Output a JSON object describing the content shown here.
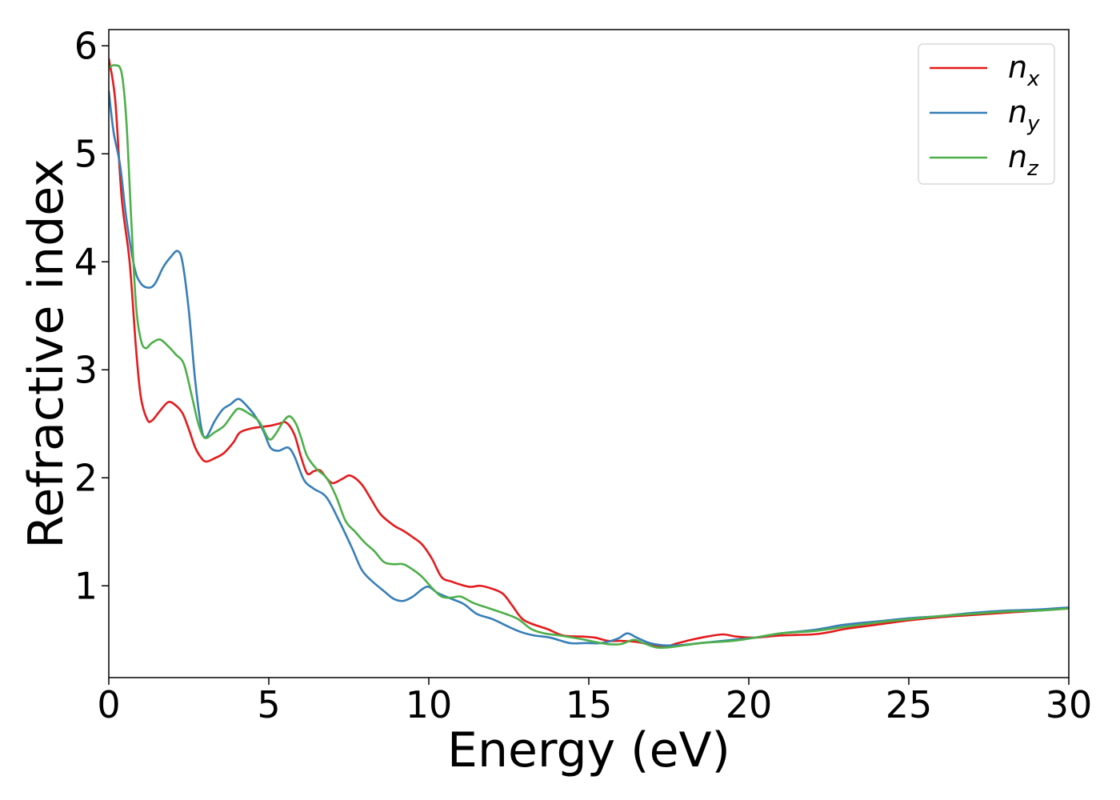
{
  "chart_data": {
    "type": "line",
    "title": "",
    "xlabel": "Energy (eV)",
    "ylabel": "Refractive index",
    "xlim": [
      0,
      30
    ],
    "ylim": [
      0.15,
      6.15
    ],
    "xticks": [
      0,
      5,
      10,
      15,
      20,
      25,
      30
    ],
    "yticks": [
      1,
      2,
      3,
      4,
      5,
      6
    ],
    "grid": false,
    "legend_position": "top-right",
    "series": [
      {
        "name": "n",
        "subscript": "x",
        "color": "#e41a1c",
        "points": [
          [
            0,
            5.88
          ],
          [
            0.2,
            5.5
          ],
          [
            0.4,
            4.6
          ],
          [
            0.65,
            4.0
          ],
          [
            0.85,
            3.2
          ],
          [
            1.0,
            2.75
          ],
          [
            1.2,
            2.54
          ],
          [
            1.35,
            2.53
          ],
          [
            1.6,
            2.62
          ],
          [
            1.85,
            2.7
          ],
          [
            2.05,
            2.68
          ],
          [
            2.3,
            2.6
          ],
          [
            2.5,
            2.45
          ],
          [
            2.7,
            2.28
          ],
          [
            2.9,
            2.18
          ],
          [
            3.05,
            2.15
          ],
          [
            3.3,
            2.18
          ],
          [
            3.6,
            2.23
          ],
          [
            3.9,
            2.33
          ],
          [
            4.1,
            2.42
          ],
          [
            4.5,
            2.46
          ],
          [
            5.0,
            2.48
          ],
          [
            5.3,
            2.5
          ],
          [
            5.55,
            2.51
          ],
          [
            5.8,
            2.4
          ],
          [
            6.0,
            2.2
          ],
          [
            6.2,
            2.04
          ],
          [
            6.4,
            2.06
          ],
          [
            6.6,
            2.07
          ],
          [
            6.8,
            2.0
          ],
          [
            7.0,
            1.95
          ],
          [
            7.3,
            1.99
          ],
          [
            7.55,
            2.02
          ],
          [
            7.9,
            1.94
          ],
          [
            8.2,
            1.8
          ],
          [
            8.5,
            1.66
          ],
          [
            8.9,
            1.56
          ],
          [
            9.2,
            1.51
          ],
          [
            9.5,
            1.45
          ],
          [
            9.8,
            1.38
          ],
          [
            10.1,
            1.25
          ],
          [
            10.4,
            1.08
          ],
          [
            10.7,
            1.04
          ],
          [
            11.0,
            1.01
          ],
          [
            11.3,
            0.99
          ],
          [
            11.6,
            1.0
          ],
          [
            11.9,
            0.98
          ],
          [
            12.3,
            0.93
          ],
          [
            12.6,
            0.82
          ],
          [
            12.9,
            0.7
          ],
          [
            13.2,
            0.65
          ],
          [
            13.7,
            0.6
          ],
          [
            14.2,
            0.54
          ],
          [
            14.8,
            0.53
          ],
          [
            15.2,
            0.52
          ],
          [
            15.6,
            0.49
          ],
          [
            16.0,
            0.49
          ],
          [
            16.5,
            0.48
          ],
          [
            17.0,
            0.45
          ],
          [
            17.4,
            0.44
          ],
          [
            17.8,
            0.47
          ],
          [
            18.2,
            0.5
          ],
          [
            18.7,
            0.53
          ],
          [
            19.2,
            0.55
          ],
          [
            19.6,
            0.53
          ],
          [
            20.2,
            0.52
          ],
          [
            21.0,
            0.54
          ],
          [
            22.0,
            0.55
          ],
          [
            22.5,
            0.57
          ],
          [
            23.0,
            0.6
          ],
          [
            24.0,
            0.64
          ],
          [
            25.0,
            0.68
          ],
          [
            26.0,
            0.71
          ],
          [
            27.0,
            0.73
          ],
          [
            28.0,
            0.75
          ],
          [
            29.0,
            0.77
          ],
          [
            30.0,
            0.79
          ]
        ]
      },
      {
        "name": "n",
        "subscript": "y",
        "color": "#377eb8",
        "points": [
          [
            0,
            5.58
          ],
          [
            0.15,
            5.2
          ],
          [
            0.35,
            4.9
          ],
          [
            0.55,
            4.4
          ],
          [
            0.8,
            3.95
          ],
          [
            1.0,
            3.8
          ],
          [
            1.25,
            3.76
          ],
          [
            1.45,
            3.8
          ],
          [
            1.7,
            3.95
          ],
          [
            1.95,
            4.05
          ],
          [
            2.15,
            4.1
          ],
          [
            2.3,
            4.0
          ],
          [
            2.5,
            3.55
          ],
          [
            2.7,
            2.9
          ],
          [
            2.9,
            2.45
          ],
          [
            3.05,
            2.38
          ],
          [
            3.3,
            2.52
          ],
          [
            3.55,
            2.63
          ],
          [
            3.8,
            2.68
          ],
          [
            4.05,
            2.73
          ],
          [
            4.3,
            2.67
          ],
          [
            4.6,
            2.56
          ],
          [
            4.85,
            2.42
          ],
          [
            5.05,
            2.28
          ],
          [
            5.3,
            2.25
          ],
          [
            5.6,
            2.28
          ],
          [
            5.8,
            2.2
          ],
          [
            6.1,
            1.98
          ],
          [
            6.4,
            1.9
          ],
          [
            6.8,
            1.82
          ],
          [
            7.2,
            1.6
          ],
          [
            7.6,
            1.35
          ],
          [
            7.9,
            1.15
          ],
          [
            8.2,
            1.05
          ],
          [
            8.6,
            0.95
          ],
          [
            8.9,
            0.88
          ],
          [
            9.2,
            0.86
          ],
          [
            9.5,
            0.9
          ],
          [
            9.8,
            0.97
          ],
          [
            10.0,
            0.99
          ],
          [
            10.3,
            0.93
          ],
          [
            10.7,
            0.88
          ],
          [
            11.1,
            0.83
          ],
          [
            11.5,
            0.74
          ],
          [
            12.0,
            0.69
          ],
          [
            12.5,
            0.62
          ],
          [
            12.9,
            0.57
          ],
          [
            13.3,
            0.54
          ],
          [
            13.8,
            0.52
          ],
          [
            14.4,
            0.47
          ],
          [
            14.9,
            0.47
          ],
          [
            15.4,
            0.47
          ],
          [
            15.9,
            0.51
          ],
          [
            16.2,
            0.56
          ],
          [
            16.5,
            0.52
          ],
          [
            16.9,
            0.47
          ],
          [
            17.3,
            0.45
          ],
          [
            17.8,
            0.45
          ],
          [
            18.5,
            0.47
          ],
          [
            19.5,
            0.5
          ],
          [
            20.2,
            0.52
          ],
          [
            21.0,
            0.56
          ],
          [
            22.0,
            0.59
          ],
          [
            23.0,
            0.64
          ],
          [
            24.0,
            0.67
          ],
          [
            25.0,
            0.7
          ],
          [
            26.0,
            0.72
          ],
          [
            27.0,
            0.75
          ],
          [
            28.0,
            0.77
          ],
          [
            29.0,
            0.78
          ],
          [
            30.0,
            0.8
          ]
        ]
      },
      {
        "name": "n",
        "subscript": "z",
        "color": "#4daf4a",
        "points": [
          [
            0,
            5.8
          ],
          [
            0.2,
            5.82
          ],
          [
            0.4,
            5.75
          ],
          [
            0.55,
            5.3
          ],
          [
            0.7,
            4.4
          ],
          [
            0.85,
            3.6
          ],
          [
            1.0,
            3.28
          ],
          [
            1.15,
            3.2
          ],
          [
            1.35,
            3.25
          ],
          [
            1.6,
            3.28
          ],
          [
            1.85,
            3.22
          ],
          [
            2.1,
            3.14
          ],
          [
            2.35,
            3.05
          ],
          [
            2.6,
            2.75
          ],
          [
            2.8,
            2.5
          ],
          [
            3.0,
            2.37
          ],
          [
            3.3,
            2.42
          ],
          [
            3.6,
            2.48
          ],
          [
            3.85,
            2.58
          ],
          [
            4.05,
            2.64
          ],
          [
            4.35,
            2.6
          ],
          [
            4.7,
            2.52
          ],
          [
            5.0,
            2.36
          ],
          [
            5.2,
            2.4
          ],
          [
            5.45,
            2.52
          ],
          [
            5.65,
            2.57
          ],
          [
            5.85,
            2.5
          ],
          [
            6.0,
            2.38
          ],
          [
            6.2,
            2.2
          ],
          [
            6.5,
            2.08
          ],
          [
            6.8,
            2.0
          ],
          [
            7.1,
            1.83
          ],
          [
            7.4,
            1.6
          ],
          [
            7.7,
            1.5
          ],
          [
            8.0,
            1.4
          ],
          [
            8.3,
            1.32
          ],
          [
            8.6,
            1.22
          ],
          [
            8.9,
            1.2
          ],
          [
            9.2,
            1.2
          ],
          [
            9.5,
            1.15
          ],
          [
            9.8,
            1.08
          ],
          [
            10.1,
            0.98
          ],
          [
            10.4,
            0.9
          ],
          [
            10.7,
            0.89
          ],
          [
            11.0,
            0.9
          ],
          [
            11.4,
            0.84
          ],
          [
            11.9,
            0.79
          ],
          [
            12.4,
            0.74
          ],
          [
            12.8,
            0.69
          ],
          [
            13.2,
            0.6
          ],
          [
            13.6,
            0.56
          ],
          [
            14.1,
            0.54
          ],
          [
            14.7,
            0.51
          ],
          [
            15.2,
            0.48
          ],
          [
            15.6,
            0.46
          ],
          [
            16.0,
            0.46
          ],
          [
            16.4,
            0.5
          ],
          [
            16.7,
            0.47
          ],
          [
            17.1,
            0.43
          ],
          [
            17.5,
            0.43
          ],
          [
            18.0,
            0.45
          ],
          [
            18.5,
            0.47
          ],
          [
            19.0,
            0.48
          ],
          [
            19.5,
            0.49
          ],
          [
            20.0,
            0.51
          ],
          [
            21.0,
            0.56
          ],
          [
            22.0,
            0.58
          ],
          [
            23.0,
            0.62
          ],
          [
            24.0,
            0.66
          ],
          [
            25.0,
            0.69
          ],
          [
            26.0,
            0.72
          ],
          [
            27.0,
            0.74
          ],
          [
            28.0,
            0.76
          ],
          [
            29.0,
            0.77
          ],
          [
            30.0,
            0.79
          ]
        ]
      }
    ]
  }
}
